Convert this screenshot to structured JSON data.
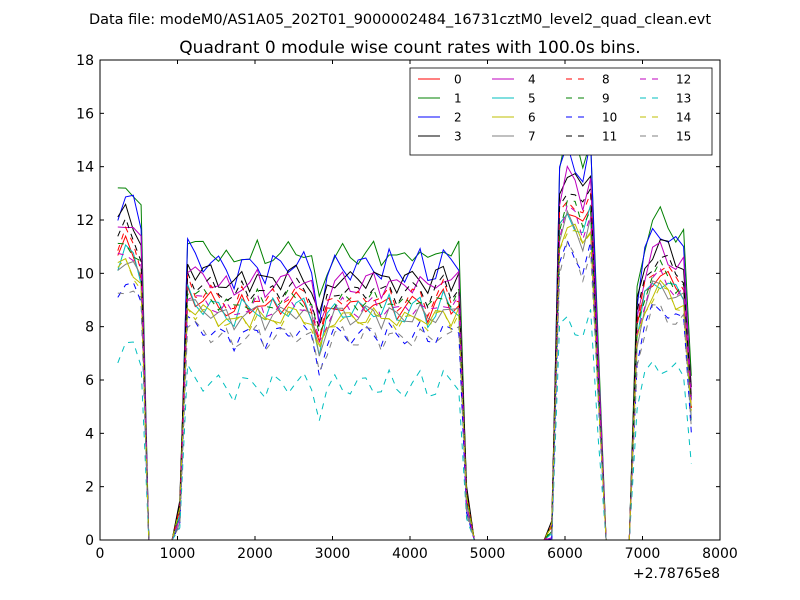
{
  "page": {
    "suptitle": "Data file: modeM0/AS1A05_202T01_9000002484_16731cztM0_level2_quad_clean.evt"
  },
  "chart_data": {
    "type": "line",
    "title": "Quadrant 0 module wise count rates with 100.0s bins.",
    "xlabel": "",
    "ylabel": "",
    "x_offset_label": "+2.78765e8",
    "xlim": [
      0,
      8000
    ],
    "ylim": [
      0,
      18
    ],
    "xticks": [
      0,
      1000,
      2000,
      3000,
      4000,
      5000,
      6000,
      7000,
      8000
    ],
    "xtick_labels": [
      "0",
      "1000",
      "2000",
      "3000",
      "4000",
      "5000",
      "6000",
      "7000",
      "8000"
    ],
    "yticks": [
      0,
      2,
      4,
      6,
      8,
      10,
      12,
      14,
      16,
      18
    ],
    "ytick_labels": [
      "0",
      "2",
      "4",
      "6",
      "8",
      "10",
      "12",
      "14",
      "16",
      "18"
    ],
    "grid": false,
    "legend_position": "top-right",
    "legend_columns": 4,
    "shape": {
      "x": [
        230,
        330,
        430,
        530,
        630,
        730,
        830,
        930,
        1030,
        1130,
        1230,
        1330,
        1430,
        1530,
        1630,
        1730,
        1830,
        1930,
        2030,
        2130,
        2230,
        2330,
        2430,
        2530,
        2630,
        2730,
        2830,
        2930,
        3030,
        3130,
        3230,
        3330,
        3430,
        3530,
        3630,
        3730,
        3830,
        3930,
        4030,
        4130,
        4230,
        4330,
        4430,
        4530,
        4630,
        4730,
        4830,
        4930,
        5030,
        5130,
        5230,
        5330,
        5430,
        5530,
        5630,
        5730,
        5830,
        5930,
        6030,
        6130,
        6230,
        6330,
        6430,
        6530,
        6630,
        6730,
        6830,
        6930,
        7030,
        7130,
        7230,
        7330,
        7430,
        7530,
        7630
      ],
      "base": [
        11.0,
        11.3,
        11.1,
        10.4,
        0,
        0,
        0,
        0,
        1.0,
        9.6,
        9.4,
        9.2,
        9.3,
        9.0,
        8.9,
        8.8,
        9.1,
        9.0,
        9.2,
        8.9,
        9.1,
        9.0,
        9.3,
        9.1,
        9.2,
        8.8,
        7.6,
        8.7,
        9.0,
        9.2,
        8.9,
        9.1,
        9.0,
        9.3,
        8.8,
        9.2,
        9.0,
        8.9,
        9.1,
        9.2,
        8.8,
        9.0,
        9.3,
        9.1,
        9.2,
        1.5,
        0,
        0,
        0,
        0,
        0,
        0,
        0,
        0,
        0,
        0,
        0.3,
        12.0,
        13.0,
        12.5,
        12.0,
        12.8,
        6.0,
        0,
        0,
        0,
        0,
        8.0,
        9.5,
        10.0,
        10.4,
        10.0,
        9.6,
        9.8,
        5.0
      ],
      "wiggle": [
        0,
        0.15,
        -0.1,
        0.05,
        0,
        0,
        0,
        0,
        0,
        0.1,
        -0.05,
        0.15,
        -0.1,
        0.05,
        0.2,
        -0.15,
        0.1,
        -0.05,
        0.15,
        -0.2,
        0.05,
        0.1,
        -0.1,
        0.2,
        -0.05,
        0.1,
        0,
        -0.1,
        0.15,
        -0.05,
        0.1,
        -0.15,
        0.2,
        -0.1,
        0.05,
        0.15,
        -0.2,
        0.1,
        -0.05,
        0.15,
        -0.1,
        0.05,
        0.2,
        -0.15,
        0.1,
        0,
        0,
        0,
        0,
        0,
        0,
        0,
        0,
        0,
        0,
        0,
        0,
        0.1,
        -0.1,
        0.15,
        -0.05,
        0.1,
        0,
        0,
        0,
        0,
        0,
        0.1,
        -0.15,
        0.2,
        -0.1,
        0.05,
        0.15,
        -0.2,
        0.1
      ]
    },
    "series": [
      {
        "name": "0",
        "color": "#ff0000",
        "dash": "solid",
        "scale": 0.97,
        "ripple": 0.35
      },
      {
        "name": "1",
        "color": "#008000",
        "dash": "solid",
        "scale": 1.18,
        "ripple": 0.3
      },
      {
        "name": "2",
        "color": "#0000ff",
        "dash": "solid",
        "scale": 1.13,
        "ripple": 0.45
      },
      {
        "name": "3",
        "color": "#000000",
        "dash": "solid",
        "scale": 1.08,
        "ripple": 0.4
      },
      {
        "name": "4",
        "color": "#bf00bf",
        "dash": "solid",
        "scale": 1.06,
        "ripple": 0.35
      },
      {
        "name": "5",
        "color": "#00bfbf",
        "dash": "solid",
        "scale": 0.95,
        "ripple": 0.4
      },
      {
        "name": "6",
        "color": "#bfbf00",
        "dash": "solid",
        "scale": 0.92,
        "ripple": 0.3
      },
      {
        "name": "7",
        "color": "#808080",
        "dash": "solid",
        "scale": 0.93,
        "ripple": 0.3
      },
      {
        "name": "8",
        "color": "#ff0000",
        "dash": "dashed",
        "scale": 1.0,
        "ripple": 0.35
      },
      {
        "name": "9",
        "color": "#008000",
        "dash": "dashed",
        "scale": 0.985,
        "ripple": 0.3
      },
      {
        "name": "10",
        "color": "#0000ff",
        "dash": "dashed",
        "scale": 0.85,
        "ripple": 0.3
      },
      {
        "name": "11",
        "color": "#000000",
        "dash": "dashed",
        "scale": 1.03,
        "ripple": 0.35
      },
      {
        "name": "12",
        "color": "#bf00bf",
        "dash": "dashed",
        "scale": 0.96,
        "ripple": 0.3
      },
      {
        "name": "13",
        "color": "#00bfbf",
        "dash": "dashed",
        "scale": 0.64,
        "ripple": 0.4
      },
      {
        "name": "14",
        "color": "#bfbf00",
        "dash": "dashed",
        "scale": 0.91,
        "ripple": 0.3
      },
      {
        "name": "15",
        "color": "#808080",
        "dash": "dashed",
        "scale": 0.84,
        "ripple": 0.35
      }
    ]
  }
}
